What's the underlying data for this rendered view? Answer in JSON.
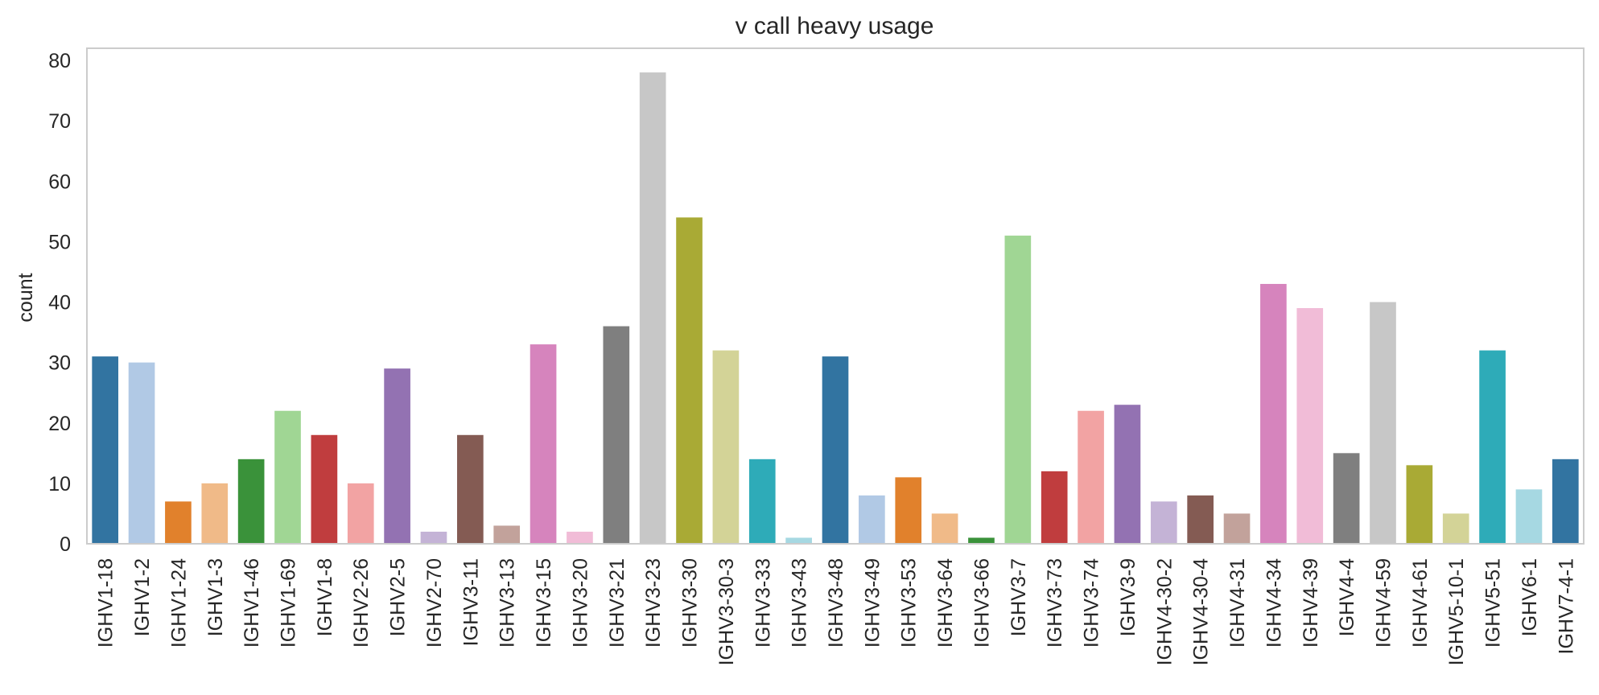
{
  "chart_data": {
    "type": "bar",
    "title": "v call heavy usage",
    "xlabel": "",
    "ylabel": "count",
    "ylim": [
      0,
      82
    ],
    "yticks": [
      0,
      10,
      20,
      30,
      40,
      50,
      60,
      70,
      80
    ],
    "grid": false,
    "categories": [
      "IGHV1-18",
      "IGHV1-2",
      "IGHV1-24",
      "IGHV1-3",
      "IGHV1-46",
      "IGHV1-69",
      "IGHV1-8",
      "IGHV2-26",
      "IGHV2-5",
      "IGHV2-70",
      "IGHV3-11",
      "IGHV3-13",
      "IGHV3-15",
      "IGHV3-20",
      "IGHV3-21",
      "IGHV3-23",
      "IGHV3-30",
      "IGHV3-30-3",
      "IGHV3-33",
      "IGHV3-43",
      "IGHV3-48",
      "IGHV3-49",
      "IGHV3-53",
      "IGHV3-64",
      "IGHV3-66",
      "IGHV3-7",
      "IGHV3-73",
      "IGHV3-74",
      "IGHV3-9",
      "IGHV4-30-2",
      "IGHV4-30-4",
      "IGHV4-31",
      "IGHV4-34",
      "IGHV4-39",
      "IGHV4-4",
      "IGHV4-59",
      "IGHV4-61",
      "IGHV5-10-1",
      "IGHV5-51",
      "IGHV6-1",
      "IGHV7-4-1"
    ],
    "values": [
      31,
      30,
      7,
      10,
      14,
      22,
      18,
      10,
      29,
      2,
      18,
      3,
      33,
      2,
      36,
      78,
      54,
      32,
      14,
      1,
      31,
      8,
      11,
      5,
      1,
      51,
      12,
      22,
      23,
      7,
      8,
      5,
      43,
      39,
      15,
      40,
      13,
      5,
      32,
      9,
      14
    ],
    "colors": [
      "#3274a1",
      "#b1c9e5",
      "#e1812c",
      "#f0ba88",
      "#3a923a",
      "#a0d694",
      "#c03d3e",
      "#f2a3a3",
      "#9372b2",
      "#c4b3d6",
      "#845b53",
      "#c2a29b",
      "#d684bd",
      "#f1bcd7",
      "#7f7f7f",
      "#c7c7c7",
      "#a9aa35",
      "#d3d397",
      "#2eabb8",
      "#a6d8e2",
      "#3274a1",
      "#b1c9e5",
      "#e1812c",
      "#f0ba88",
      "#3a923a",
      "#a0d694",
      "#c03d3e",
      "#f2a3a3",
      "#9372b2",
      "#c4b3d6",
      "#845b53",
      "#c2a29b",
      "#d684bd",
      "#f1bcd7",
      "#7f7f7f",
      "#c7c7c7",
      "#a9aa35",
      "#d3d397",
      "#2eabb8",
      "#a6d8e2",
      "#3274a1"
    ]
  }
}
